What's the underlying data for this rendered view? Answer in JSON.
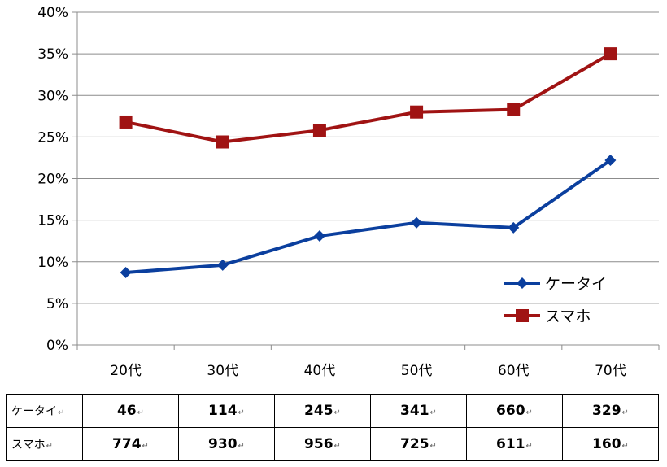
{
  "chart_data": {
    "type": "line",
    "categories": [
      "20代",
      "30代",
      "40代",
      "50代",
      "60代",
      "70代"
    ],
    "series": [
      {
        "name": "ケータイ",
        "color": "#0b3f9e",
        "marker": "diamond",
        "values": [
          8.7,
          9.6,
          13.1,
          14.7,
          14.1,
          22.2
        ]
      },
      {
        "name": "スマホ",
        "color": "#a01313",
        "marker": "square",
        "values": [
          26.8,
          24.4,
          25.8,
          28.0,
          28.3,
          35.0
        ]
      }
    ],
    "ylim": [
      0,
      40
    ],
    "yticks": [
      "0%",
      "5%",
      "10%",
      "15%",
      "20%",
      "25%",
      "30%",
      "35%",
      "40%"
    ],
    "grid": true,
    "legend": "right"
  },
  "table": {
    "rows": [
      {
        "label": "ケータイ",
        "values": [
          "46",
          "114",
          "245",
          "341",
          "660",
          "329"
        ]
      },
      {
        "label": "スマホ",
        "values": [
          "774",
          "930",
          "956",
          "725",
          "611",
          "160"
        ]
      }
    ],
    "return_mark": "↵"
  }
}
